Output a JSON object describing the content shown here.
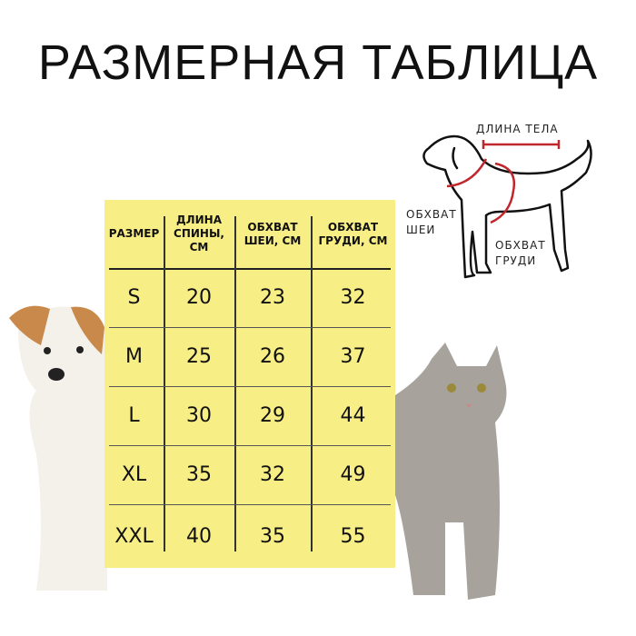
{
  "title": "РАЗМЕРНАЯ ТАБЛИЦА",
  "table": {
    "headers": [
      "РАЗМЕР",
      "ДЛИНА СПИНЫ, СМ",
      "ОБХВАТ ШЕИ, СМ",
      "ОБХВАТ ГРУДИ, СМ"
    ],
    "rows": [
      [
        "S",
        "20",
        "23",
        "32"
      ],
      [
        "M",
        "25",
        "26",
        "37"
      ],
      [
        "L",
        "30",
        "29",
        "44"
      ],
      [
        "XL",
        "35",
        "32",
        "49"
      ],
      [
        "XXL",
        "40",
        "35",
        "55"
      ]
    ]
  },
  "diagram": {
    "body_length": "ДЛИНА ТЕЛА",
    "neck": "ОБХВАТ ШЕИ",
    "chest": "ОБХВАТ ГРУДИ"
  },
  "colors": {
    "table_bg": "#f8ee86",
    "measure_red": "#c0272d"
  }
}
